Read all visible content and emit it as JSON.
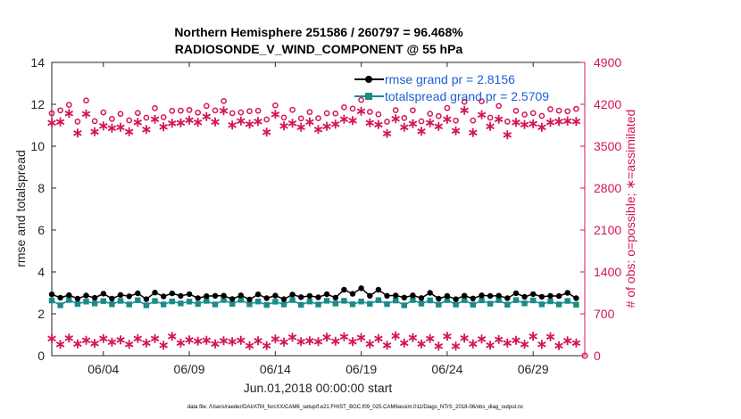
{
  "chart_data": {
    "type": "line",
    "title_line1": "Northern Hemisphere 251586 / 260797 = 96.468%",
    "title_line2": "RADIOSONDE_V_WIND_COMPONENT @ 55 hPa",
    "xlabel": "Jun.01,2018 00:00:00 start",
    "ylabel_left": "rmse and totalspread",
    "ylabel_right": "# of obs: o=possible; ∗=assimilated",
    "ylim_left": [
      0,
      14
    ],
    "ylim_right": [
      0,
      4900
    ],
    "xlim_days": [
      1,
      32
    ],
    "x_tick_positions": [
      4,
      9,
      14,
      19,
      24,
      29
    ],
    "x_tick_labels": [
      "06/04",
      "06/09",
      "06/14",
      "06/19",
      "06/24",
      "06/29"
    ],
    "y_left_ticks": [
      "0",
      "2",
      "4",
      "6",
      "8",
      "10",
      "12",
      "14"
    ],
    "y_right_ticks": [
      "0",
      "700",
      "1400",
      "2100",
      "2800",
      "3500",
      "4200",
      "4900"
    ],
    "legend": {
      "rmse": "rmse grand pr = 2.8156",
      "spread": "totalspread grand pr = 2.5709"
    },
    "series": [
      {
        "name": "rmse",
        "color": "#000000",
        "axis": "left",
        "base": 2.85,
        "mean": 2.8156
      },
      {
        "name": "totalspread",
        "color": "#1a8c88",
        "axis": "right_scale_left",
        "base": 2.55,
        "mean": 2.5709
      },
      {
        "name": "possible",
        "color": "#d4145a",
        "axis": "right",
        "base_00": 4150,
        "base_12": 4000
      },
      {
        "name": "assimilated",
        "color": "#d4145a",
        "axis": "right",
        "base_00": 4000,
        "base_12": 3850,
        "low_00": 310,
        "low_12": 220
      }
    ],
    "footer": "data file: /Users/raeder/DAI/ATM_forcXX/CAM6_setup/f.e21.FHIST_BGC.f09_025.CAM6assim.011/Diags_NTrS_2018-06/obs_diag_output.nc"
  }
}
